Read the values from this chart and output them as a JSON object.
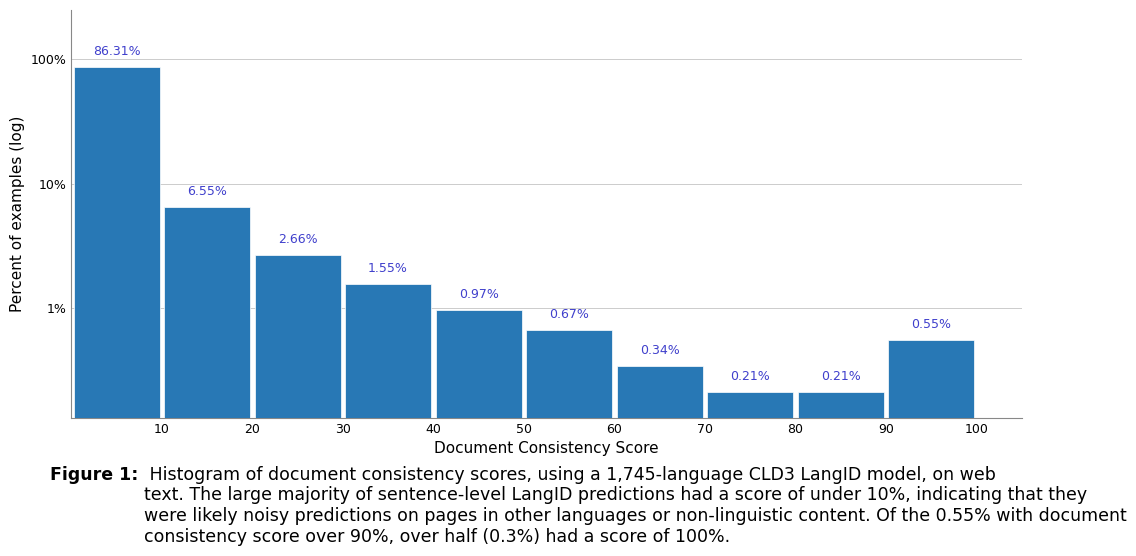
{
  "categories": [
    5,
    15,
    25,
    35,
    45,
    55,
    65,
    75,
    85,
    95
  ],
  "xticks": [
    0,
    10,
    20,
    30,
    40,
    50,
    60,
    70,
    80,
    90,
    100
  ],
  "xtick_labels": [
    "",
    "10",
    "20",
    "30",
    "40",
    "50",
    "60",
    "70",
    "80",
    "90",
    "100"
  ],
  "values": [
    86.31,
    6.55,
    2.66,
    1.55,
    0.97,
    0.67,
    0.34,
    0.21,
    0.21,
    0.55
  ],
  "labels": [
    "86.31%",
    "6.55%",
    "2.66%",
    "1.55%",
    "0.97%",
    "0.67%",
    "0.34%",
    "0.21%",
    "0.21%",
    "0.55%"
  ],
  "bar_color": "#2878b5",
  "label_color": "#4040cc",
  "xlabel": "Document Consistency Score",
  "ylabel": "Percent of examples (log)",
  "bar_width": 9.5,
  "xlim": [
    0,
    105
  ],
  "ylim": [
    0.13,
    250
  ],
  "yticks": [
    1,
    10,
    100
  ],
  "ytick_labels": [
    "1%",
    "10%",
    "100%"
  ],
  "background_color": "#ffffff",
  "caption_bold": "Figure 1:",
  "caption_normal": " Histogram of document consistency scores, using a 1,745-language CLD3 LangID model, on web\ntext. The large majority of sentence-level LangID predictions had a score of under 10%, indicating that they\nwere likely noisy predictions on pages in other languages or non-linguistic content. Of the 0.55% with document\nconsistency score over 90%, over half (0.3%) had a score of 100%.",
  "caption_fontsize": 12.5
}
